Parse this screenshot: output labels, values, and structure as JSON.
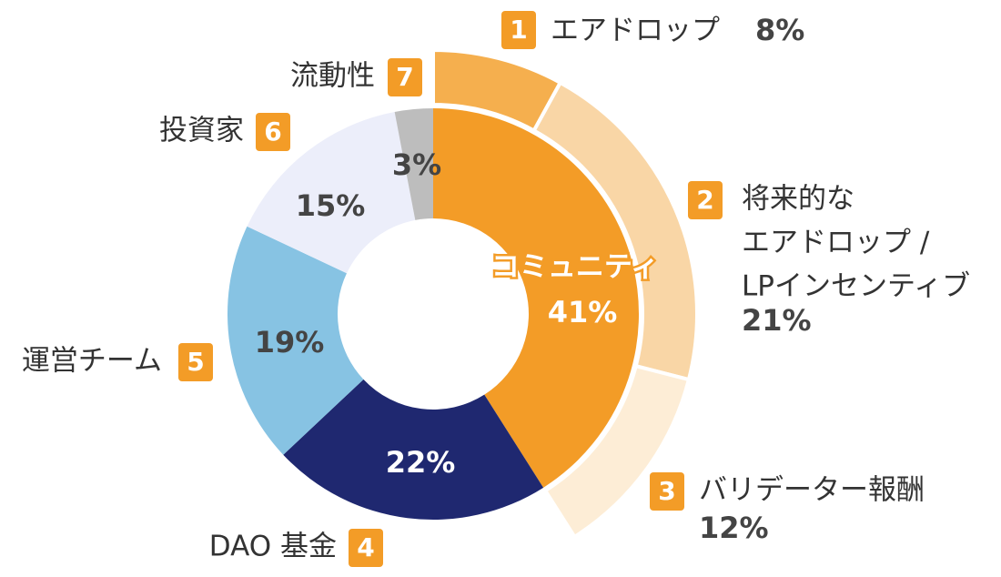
{
  "chart_data": {
    "type": "nested-donut",
    "inner": {
      "categories": [
        "コミュニティ",
        "DAO 基金",
        "運営チーム",
        "投資家",
        "流動性"
      ],
      "badges": [
        null,
        "4",
        "5",
        "6",
        "7"
      ],
      "values": [
        41,
        22,
        19,
        15,
        3
      ],
      "value_labels": [
        "41%",
        "22%",
        "19%",
        "15%",
        "3%"
      ],
      "colors": [
        "#F39C27",
        "#1F2870",
        "#87C3E3",
        "#ECEEFA",
        "#BDBDBD"
      ]
    },
    "outer": {
      "categories": [
        [
          "エアドロップ"
        ],
        [
          "将来的な",
          "エアドロップ /",
          "LPインセンティブ"
        ],
        [
          "バリデーター報酬"
        ]
      ],
      "badges": [
        "1",
        "2",
        "3"
      ],
      "values": [
        8,
        21,
        12
      ],
      "value_labels": [
        "8%",
        "21%",
        "12%"
      ],
      "colors": [
        "#F5AF4E",
        "#F9D6A6",
        "#FDEDD6"
      ]
    }
  }
}
